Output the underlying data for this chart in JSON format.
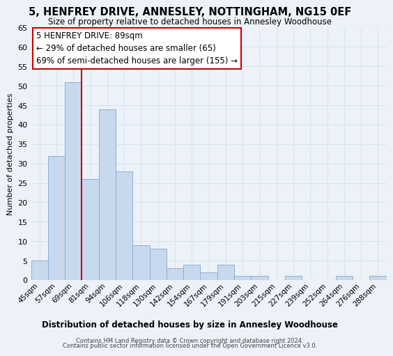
{
  "title": "5, HENFREY DRIVE, ANNESLEY, NOTTINGHAM, NG15 0EF",
  "subtitle": "Size of property relative to detached houses in Annesley Woodhouse",
  "xlabel": "Distribution of detached houses by size in Annesley Woodhouse",
  "ylabel": "Number of detached properties",
  "categories": [
    "45sqm",
    "57sqm",
    "69sqm",
    "81sqm",
    "94sqm",
    "106sqm",
    "118sqm",
    "130sqm",
    "142sqm",
    "154sqm",
    "167sqm",
    "179sqm",
    "191sqm",
    "203sqm",
    "215sqm",
    "227sqm",
    "239sqm",
    "252sqm",
    "264sqm",
    "276sqm",
    "288sqm"
  ],
  "values": [
    5,
    32,
    51,
    26,
    44,
    28,
    9,
    8,
    3,
    4,
    2,
    4,
    1,
    1,
    0,
    1,
    0,
    0,
    1,
    0,
    1
  ],
  "bar_color": "#c8d9ee",
  "bar_edge_color": "#8aafd4",
  "vline_x_index": 2.5,
  "vline_color": "#cc0000",
  "ylim": [
    0,
    65
  ],
  "yticks": [
    0,
    5,
    10,
    15,
    20,
    25,
    30,
    35,
    40,
    45,
    50,
    55,
    60,
    65
  ],
  "annotation_title": "5 HENFREY DRIVE: 89sqm",
  "annotation_line1": "← 29% of detached houses are smaller (65)",
  "annotation_line2": "69% of semi-detached houses are larger (155) →",
  "annotation_box_facecolor": "#ffffff",
  "annotation_box_edgecolor": "#cc0000",
  "footer1": "Contains HM Land Registry data © Crown copyright and database right 2024.",
  "footer2": "Contains public sector information licensed under the Open Government Licence v3.0.",
  "grid_color": "#d8e4f0",
  "background_color": "#edf2f8"
}
